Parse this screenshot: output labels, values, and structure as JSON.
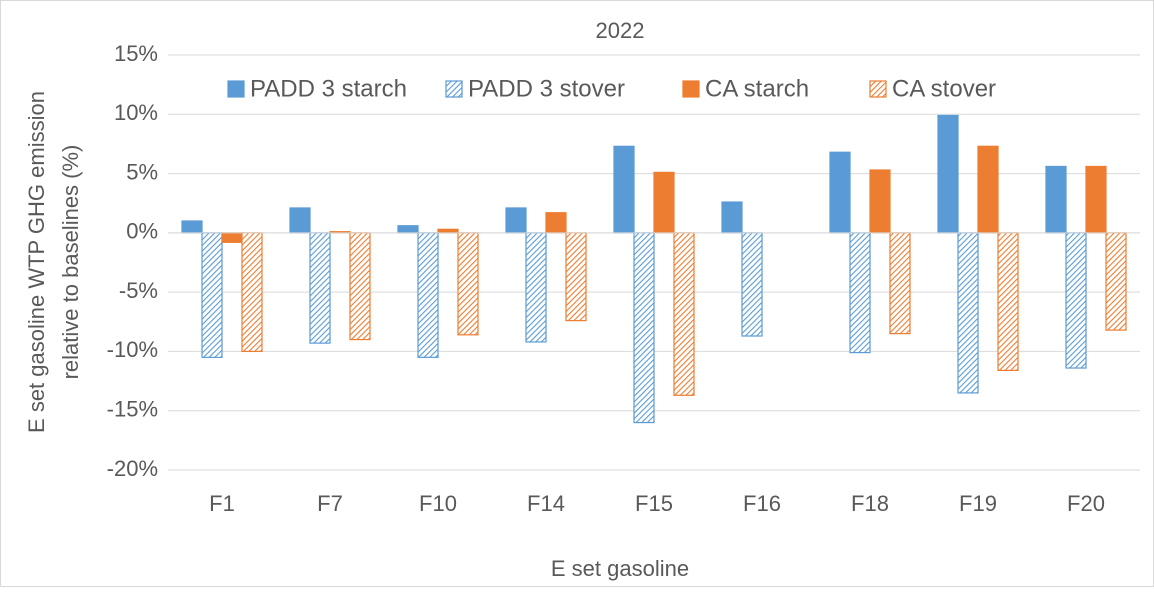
{
  "chart_data": {
    "type": "bar",
    "title": "2022",
    "ylabel": [
      "E set gasoline WTP GHG emission",
      "relative to baselines (%)"
    ],
    "xlabel": "E set gasoline",
    "categories": [
      "F1",
      "F7",
      "F10",
      "F14",
      "F15",
      "F16",
      "F18",
      "F19",
      "F20"
    ],
    "series": [
      {
        "name": "PADD 3 starch",
        "color": "#5b9bd5",
        "hatch": false,
        "values": [
          1.0,
          2.1,
          0.6,
          2.1,
          7.3,
          2.6,
          6.8,
          9.9,
          5.6
        ]
      },
      {
        "name": "PADD 3 stover",
        "color": "#5b9bd5",
        "hatch": true,
        "values": [
          -10.5,
          -9.3,
          -10.5,
          -9.2,
          -16.0,
          -8.7,
          -10.1,
          -13.5,
          -11.4
        ]
      },
      {
        "name": "CA starch",
        "color": "#ed7d31",
        "hatch": false,
        "values": [
          -0.8,
          0.1,
          0.3,
          1.7,
          5.1,
          null,
          5.3,
          7.3,
          5.6
        ]
      },
      {
        "name": "CA stover",
        "color": "#ed7d31",
        "hatch": true,
        "values": [
          -10.0,
          -9.0,
          -8.6,
          -7.4,
          -13.7,
          null,
          -8.5,
          -11.6,
          -8.2
        ]
      }
    ],
    "ylim": [
      -20,
      15
    ],
    "yticks": [
      {
        "value": -20,
        "label": "-20%"
      },
      {
        "value": -15,
        "label": "-15%"
      },
      {
        "value": -10,
        "label": "-10%"
      },
      {
        "value": -5,
        "label": "-5%"
      },
      {
        "value": 0,
        "label": "0%"
      },
      {
        "value": 5,
        "label": "5%"
      },
      {
        "value": 10,
        "label": "10%"
      },
      {
        "value": 15,
        "label": "15%"
      }
    ],
    "grid": true
  }
}
